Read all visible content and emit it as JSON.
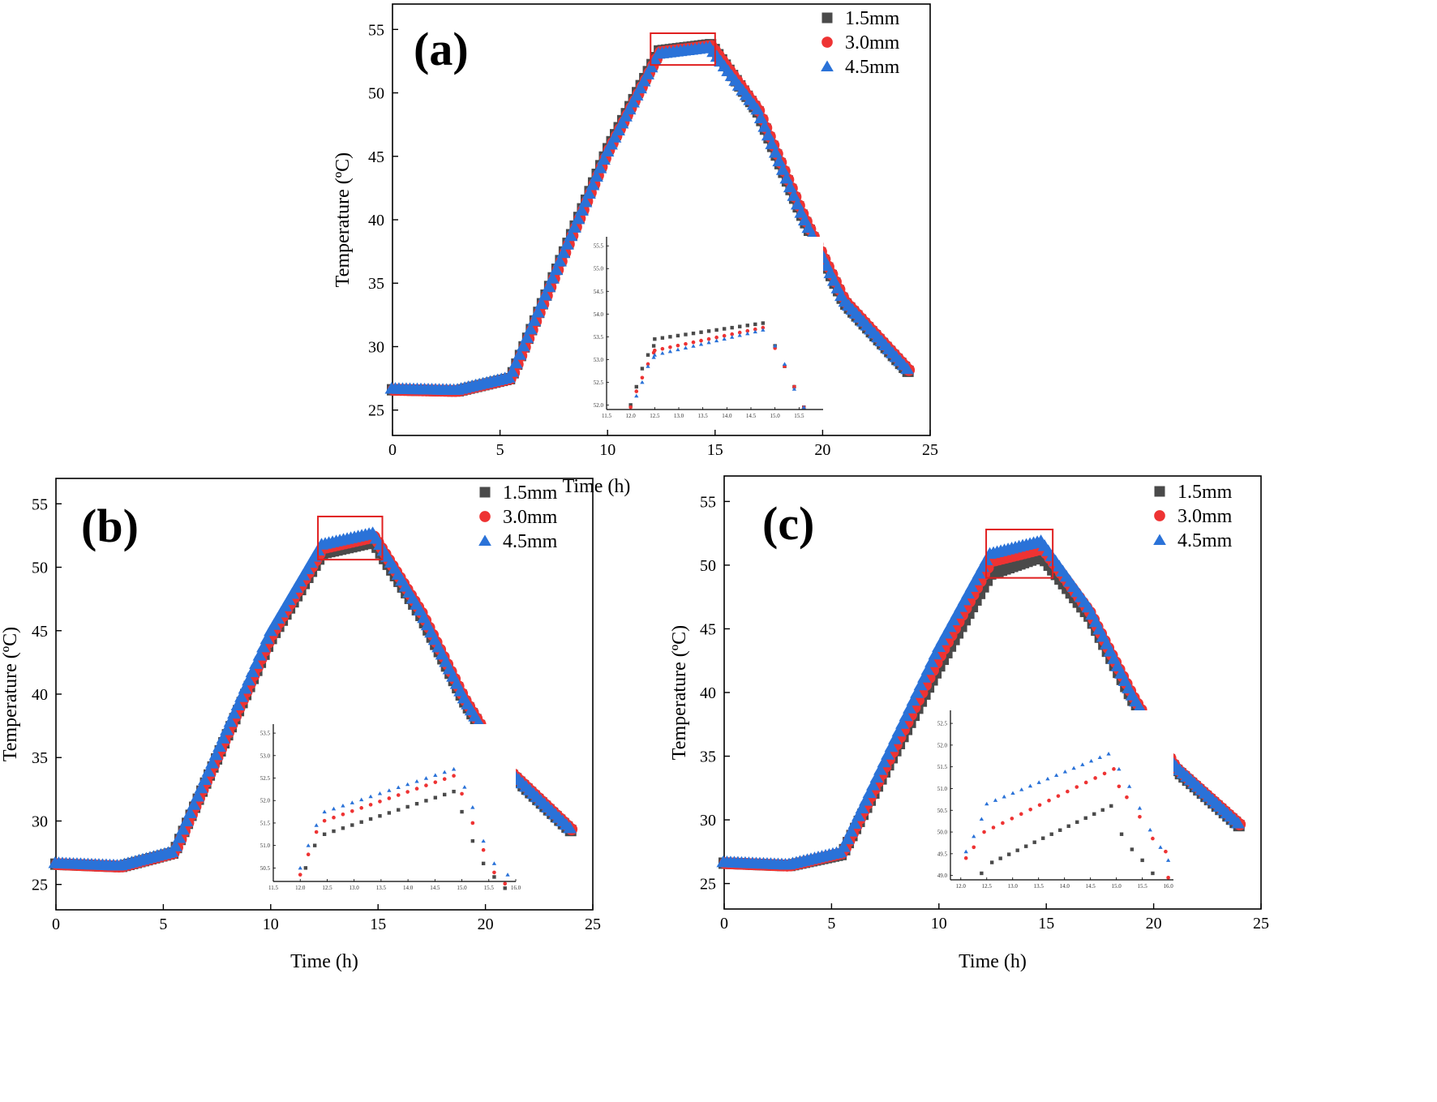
{
  "chart_data": [
    {
      "type": "scatter",
      "panel_label": "(a)",
      "xlabel": "Time (h)",
      "ylabel": "Temperature (ºC)",
      "xlim": [
        0,
        25
      ],
      "ylim": [
        23,
        57
      ],
      "x_ticks": [
        "0",
        "5",
        "10",
        "15",
        "20",
        "25"
      ],
      "y_ticks": [
        "25",
        "30",
        "35",
        "40",
        "45",
        "50",
        "55"
      ],
      "legend_position": "top-right",
      "series": [
        {
          "name": "1.5mm",
          "color": "#4a4a4a",
          "marker": "square",
          "points": [
            [
              0,
              26.6
            ],
            [
              3,
              26.5
            ],
            [
              5.5,
              27.5
            ],
            [
              10,
              45.5
            ],
            [
              12.4,
              53.3
            ],
            [
              14.8,
              53.8
            ],
            [
              17,
              48.5
            ],
            [
              19,
              40.5
            ],
            [
              21,
              33.5
            ],
            [
              24,
              28.0
            ]
          ]
        },
        {
          "name": "3.0mm",
          "color": "#ee3333",
          "marker": "circle",
          "points": [
            [
              0,
              26.6
            ],
            [
              3,
              26.5
            ],
            [
              5.5,
              27.5
            ],
            [
              10,
              45.4
            ],
            [
              12.4,
              53.2
            ],
            [
              14.8,
              53.7
            ],
            [
              17,
              48.6
            ],
            [
              19,
              40.6
            ],
            [
              21,
              33.6
            ],
            [
              24,
              28.1
            ]
          ]
        },
        {
          "name": "4.5mm",
          "color": "#2a72d8",
          "marker": "triangle",
          "points": [
            [
              0,
              26.7
            ],
            [
              3,
              26.6
            ],
            [
              5.5,
              27.6
            ],
            [
              10,
              45.3
            ],
            [
              12.4,
              53.1
            ],
            [
              14.8,
              53.6
            ],
            [
              17,
              48.7
            ],
            [
              19,
              40.7
            ],
            [
              21,
              33.7
            ],
            [
              24,
              28.2
            ]
          ]
        }
      ],
      "zoom_box": {
        "x": [
          12.0,
          15.0
        ],
        "y": [
          52.2,
          54.7
        ]
      },
      "inset": {
        "xlim": [
          11.5,
          16.0
        ],
        "ylim": [
          51.9,
          55.7
        ],
        "x_ticks": [
          "11.5",
          "12.0",
          "12.5",
          "13.0",
          "13.5",
          "14.0",
          "14.5",
          "15.0",
          "15.5"
        ],
        "y_ticks": [
          "52.0",
          "52.5",
          "53.0",
          "53.5",
          "54.0",
          "54.5",
          "55.0",
          "55.5"
        ],
        "series": [
          {
            "name": "1.5mm",
            "rise": [
              [
                12.0,
                52.0
              ],
              [
                12.12,
                52.4
              ],
              [
                12.24,
                52.8
              ],
              [
                12.36,
                53.1
              ],
              [
                12.48,
                53.3
              ]
            ],
            "plateau": [
              12.5,
              53.45,
              14.75,
              53.8
            ],
            "drop": [
              [
                15.0,
                53.3
              ],
              [
                15.2,
                52.85
              ],
              [
                15.4,
                52.4
              ],
              [
                15.6,
                51.95
              ]
            ]
          },
          {
            "name": "3.0mm",
            "rise": [
              [
                12.0,
                51.95
              ],
              [
                12.12,
                52.3
              ],
              [
                12.24,
                52.6
              ],
              [
                12.36,
                52.9
              ],
              [
                12.48,
                53.15
              ]
            ],
            "plateau": [
              12.5,
              53.2,
              14.75,
              53.7
            ],
            "drop": [
              [
                15.0,
                53.25
              ],
              [
                15.2,
                52.85
              ],
              [
                15.4,
                52.4
              ],
              [
                15.6,
                51.95
              ]
            ]
          },
          {
            "name": "4.5mm",
            "rise": [
              [
                12.12,
                52.2
              ],
              [
                12.24,
                52.5
              ],
              [
                12.36,
                52.85
              ],
              [
                12.48,
                53.05
              ]
            ],
            "plateau": [
              12.5,
              53.1,
              14.75,
              53.65
            ],
            "drop": [
              [
                15.0,
                53.3
              ],
              [
                15.2,
                52.9
              ],
              [
                15.4,
                52.35
              ],
              [
                15.6,
                51.95
              ]
            ]
          }
        ]
      }
    },
    {
      "type": "scatter",
      "panel_label": "(b)",
      "xlabel": "Time (h)",
      "ylabel": "Temperature (ºC)",
      "xlim": [
        0,
        25
      ],
      "ylim": [
        23,
        57
      ],
      "x_ticks": [
        "0",
        "5",
        "10",
        "15",
        "20",
        "25"
      ],
      "y_ticks": [
        "25",
        "30",
        "35",
        "40",
        "45",
        "50",
        "55"
      ],
      "legend_position": "top-right",
      "series": [
        {
          "name": "1.5mm",
          "color": "#4a4a4a",
          "marker": "square",
          "points": [
            [
              0,
              26.6
            ],
            [
              3,
              26.4
            ],
            [
              5.5,
              27.5
            ],
            [
              10,
              44.3
            ],
            [
              12.4,
              51.1
            ],
            [
              14.8,
              52.0
            ],
            [
              17,
              46.2
            ],
            [
              19,
              39.5
            ],
            [
              21,
              34.0
            ],
            [
              24,
              29.2
            ]
          ]
        },
        {
          "name": "3.0mm",
          "color": "#ee3333",
          "marker": "circle",
          "points": [
            [
              0,
              26.6
            ],
            [
              3,
              26.4
            ],
            [
              5.5,
              27.5
            ],
            [
              10,
              44.6
            ],
            [
              12.4,
              51.5
            ],
            [
              14.8,
              52.4
            ],
            [
              17,
              46.4
            ],
            [
              19,
              39.6
            ],
            [
              21,
              34.1
            ],
            [
              24,
              29.3
            ]
          ]
        },
        {
          "name": "4.5mm",
          "color": "#2a72d8",
          "marker": "triangle",
          "points": [
            [
              0,
              26.7
            ],
            [
              3,
              26.5
            ],
            [
              5.5,
              27.6
            ],
            [
              10,
              44.9
            ],
            [
              12.4,
              51.8
            ],
            [
              14.8,
              52.7
            ],
            [
              17,
              46.6
            ],
            [
              19,
              39.8
            ],
            [
              21,
              34.2
            ],
            [
              24,
              29.4
            ]
          ]
        }
      ],
      "zoom_box": {
        "x": [
          12.2,
          15.2
        ],
        "y": [
          50.6,
          54.0
        ]
      },
      "inset": {
        "xlim": [
          11.5,
          16.0
        ],
        "ylim": [
          50.2,
          53.7
        ],
        "x_ticks": [
          "11.5",
          "12.0",
          "12.5",
          "13.0",
          "13.5",
          "14.0",
          "14.5",
          "15.0",
          "15.5",
          "16.0"
        ],
        "y_ticks": [
          "50.5",
          "51.0",
          "51.5",
          "52.0",
          "52.5",
          "53.0",
          "53.5"
        ],
        "series": [
          {
            "name": "1.5mm",
            "rise": [
              [
                12.1,
                50.5
              ],
              [
                12.27,
                51.0
              ]
            ],
            "plateau": [
              12.45,
              51.25,
              14.85,
              52.2
            ],
            "drop": [
              [
                15.0,
                51.75
              ],
              [
                15.2,
                51.1
              ],
              [
                15.4,
                50.6
              ],
              [
                15.6,
                50.3
              ],
              [
                15.8,
                50.05
              ]
            ]
          },
          {
            "name": "3.0mm",
            "rise": [
              [
                12.0,
                50.35
              ],
              [
                12.15,
                50.8
              ],
              [
                12.3,
                51.3
              ]
            ],
            "plateau": [
              12.45,
              51.55,
              14.85,
              52.55
            ],
            "drop": [
              [
                15.0,
                52.15
              ],
              [
                15.2,
                51.5
              ],
              [
                15.4,
                50.9
              ],
              [
                15.6,
                50.4
              ],
              [
                15.8,
                50.15
              ]
            ]
          },
          {
            "name": "4.5mm",
            "rise": [
              [
                12.0,
                50.5
              ],
              [
                12.15,
                51.0
              ],
              [
                12.3,
                51.45
              ]
            ],
            "plateau": [
              12.45,
              51.75,
              14.85,
              52.7
            ],
            "drop": [
              [
                15.05,
                52.3
              ],
              [
                15.2,
                51.85
              ],
              [
                15.4,
                51.1
              ],
              [
                15.6,
                50.6
              ],
              [
                15.85,
                50.35
              ]
            ]
          }
        ]
      }
    },
    {
      "type": "scatter",
      "panel_label": "(c)",
      "xlabel": "Time (h)",
      "ylabel": "Temperature (ºC)",
      "xlim": [
        0,
        25
      ],
      "ylim": [
        23,
        57
      ],
      "x_ticks": [
        "0",
        "5",
        "10",
        "15",
        "20",
        "25"
      ],
      "y_ticks": [
        "25",
        "30",
        "35",
        "40",
        "45",
        "50",
        "55"
      ],
      "legend_position": "top-right",
      "series": [
        {
          "name": "1.5mm",
          "color": "#4a4a4a",
          "marker": "square",
          "points": [
            [
              0,
              26.6
            ],
            [
              3,
              26.4
            ],
            [
              5.5,
              27.3
            ],
            [
              10,
              42.0
            ],
            [
              12.4,
              49.3
            ],
            [
              14.8,
              50.7
            ],
            [
              17,
              46.0
            ],
            [
              19,
              39.5
            ],
            [
              21,
              34.0
            ],
            [
              24,
              29.5
            ]
          ]
        },
        {
          "name": "3.0mm",
          "color": "#ee3333",
          "marker": "circle",
          "points": [
            [
              0,
              26.6
            ],
            [
              3,
              26.4
            ],
            [
              5.5,
              27.4
            ],
            [
              10,
              42.8
            ],
            [
              12.4,
              50.3
            ],
            [
              14.8,
              51.3
            ],
            [
              17,
              46.3
            ],
            [
              19,
              39.7
            ],
            [
              21,
              34.1
            ],
            [
              24,
              29.6
            ]
          ]
        },
        {
          "name": "4.5mm",
          "color": "#2a72d8",
          "marker": "triangle",
          "points": [
            [
              0,
              26.7
            ],
            [
              3,
              26.5
            ],
            [
              5.5,
              27.5
            ],
            [
              10,
              43.5
            ],
            [
              12.4,
              50.9
            ],
            [
              14.8,
              51.9
            ],
            [
              17,
              46.7
            ],
            [
              19,
              39.9
            ],
            [
              21,
              34.3
            ],
            [
              24,
              29.7
            ]
          ]
        }
      ],
      "zoom_box": {
        "x": [
          12.2,
          15.3
        ],
        "y": [
          49.0,
          52.8
        ]
      },
      "inset": {
        "xlim": [
          11.8,
          16.1
        ],
        "ylim": [
          48.9,
          52.8
        ],
        "x_ticks": [
          "12.0",
          "12.5",
          "13.0",
          "13.5",
          "14.0",
          "14.5",
          "15.0",
          "15.5",
          "16.0"
        ],
        "y_ticks": [
          "49.0",
          "49.5",
          "50.0",
          "50.5",
          "51.0",
          "51.5",
          "52.0",
          "52.5"
        ],
        "series": [
          {
            "name": "1.5mm",
            "rise": [
              [
                12.4,
                49.05
              ]
            ],
            "plateau": [
              12.6,
              49.3,
              14.9,
              50.6
            ],
            "drop": [
              [
                15.1,
                49.95
              ],
              [
                15.3,
                49.6
              ],
              [
                15.5,
                49.35
              ],
              [
                15.7,
                49.05
              ]
            ]
          },
          {
            "name": "3.0mm",
            "rise": [
              [
                12.1,
                49.4
              ],
              [
                12.25,
                49.65
              ]
            ],
            "plateau": [
              12.45,
              50.0,
              14.95,
              51.45
            ],
            "drop": [
              [
                15.05,
                51.05
              ],
              [
                15.2,
                50.8
              ],
              [
                15.45,
                50.35
              ],
              [
                15.7,
                49.85
              ],
              [
                15.95,
                49.55
              ],
              [
                16.0,
                48.95
              ]
            ]
          },
          {
            "name": "4.5mm",
            "rise": [
              [
                12.1,
                49.55
              ],
              [
                12.25,
                49.9
              ],
              [
                12.4,
                50.3
              ]
            ],
            "plateau": [
              12.5,
              50.65,
              14.85,
              51.8
            ],
            "drop": [
              [
                15.05,
                51.45
              ],
              [
                15.25,
                51.05
              ],
              [
                15.45,
                50.55
              ],
              [
                15.65,
                50.05
              ],
              [
                15.85,
                49.65
              ],
              [
                16.0,
                49.35
              ]
            ]
          }
        ]
      }
    }
  ]
}
